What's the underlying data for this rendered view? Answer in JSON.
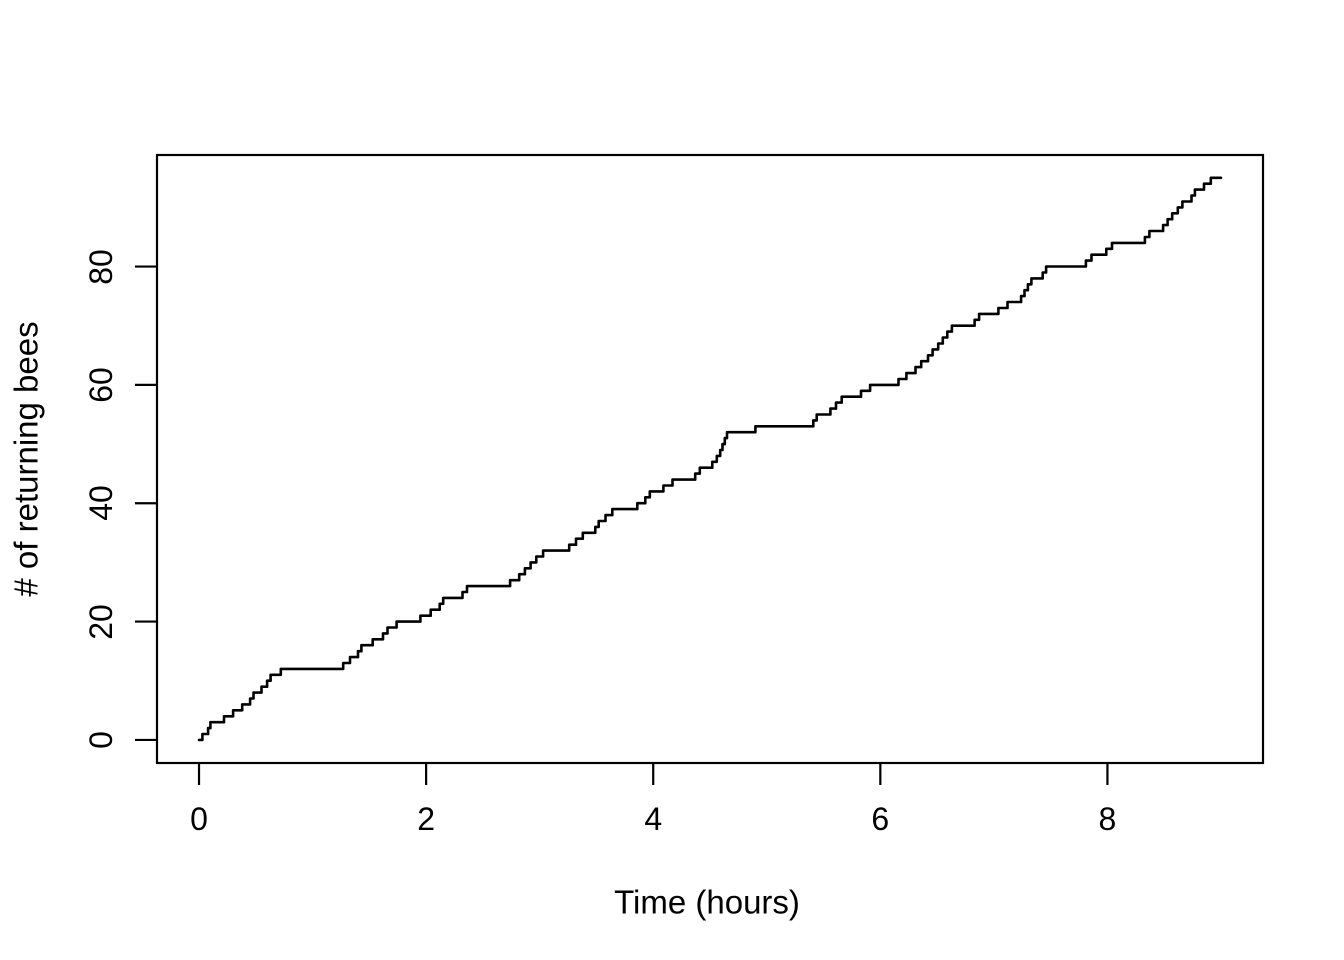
{
  "figure": {
    "background_color": "#ffffff",
    "foreground_color": "#000000"
  },
  "chart_data": {
    "type": "line",
    "subtype": "step-cumulative-count",
    "title": "",
    "xlabel": "Time (hours)",
    "ylabel": "# of returning bees",
    "x_ticks": [
      0,
      2,
      4,
      6,
      8
    ],
    "y_ticks": [
      0,
      20,
      40,
      60,
      80
    ],
    "xlim": [
      -0.37,
      9.37
    ],
    "ylim": [
      -3.9,
      98.85
    ],
    "grid": false,
    "legend": null,
    "line_color": "#000000",
    "start_point": {
      "x": 0,
      "y": 0
    },
    "end_x": 9.0,
    "final_count": 95,
    "event_times": [
      0.03,
      0.08,
      0.1,
      0.22,
      0.3,
      0.38,
      0.45,
      0.48,
      0.55,
      0.6,
      0.63,
      0.72,
      1.27,
      1.33,
      1.4,
      1.43,
      1.53,
      1.62,
      1.66,
      1.74,
      1.95,
      2.04,
      2.12,
      2.15,
      2.32,
      2.36,
      2.74,
      2.82,
      2.87,
      2.92,
      2.97,
      3.03,
      3.26,
      3.32,
      3.38,
      3.49,
      3.52,
      3.58,
      3.64,
      3.86,
      3.93,
      3.97,
      4.09,
      4.17,
      4.37,
      4.41,
      4.52,
      4.56,
      4.59,
      4.61,
      4.63,
      4.65,
      4.9,
      5.41,
      5.44,
      5.56,
      5.61,
      5.66,
      5.83,
      5.91,
      6.16,
      6.23,
      6.31,
      6.36,
      6.42,
      6.46,
      6.51,
      6.55,
      6.59,
      6.63,
      6.83,
      6.87,
      7.04,
      7.12,
      7.24,
      7.27,
      7.3,
      7.33,
      7.43,
      7.46,
      7.81,
      7.86,
      7.99,
      8.04,
      8.33,
      8.37,
      8.49,
      8.53,
      8.57,
      8.62,
      8.66,
      8.74,
      8.77,
      8.85,
      8.91
    ]
  }
}
